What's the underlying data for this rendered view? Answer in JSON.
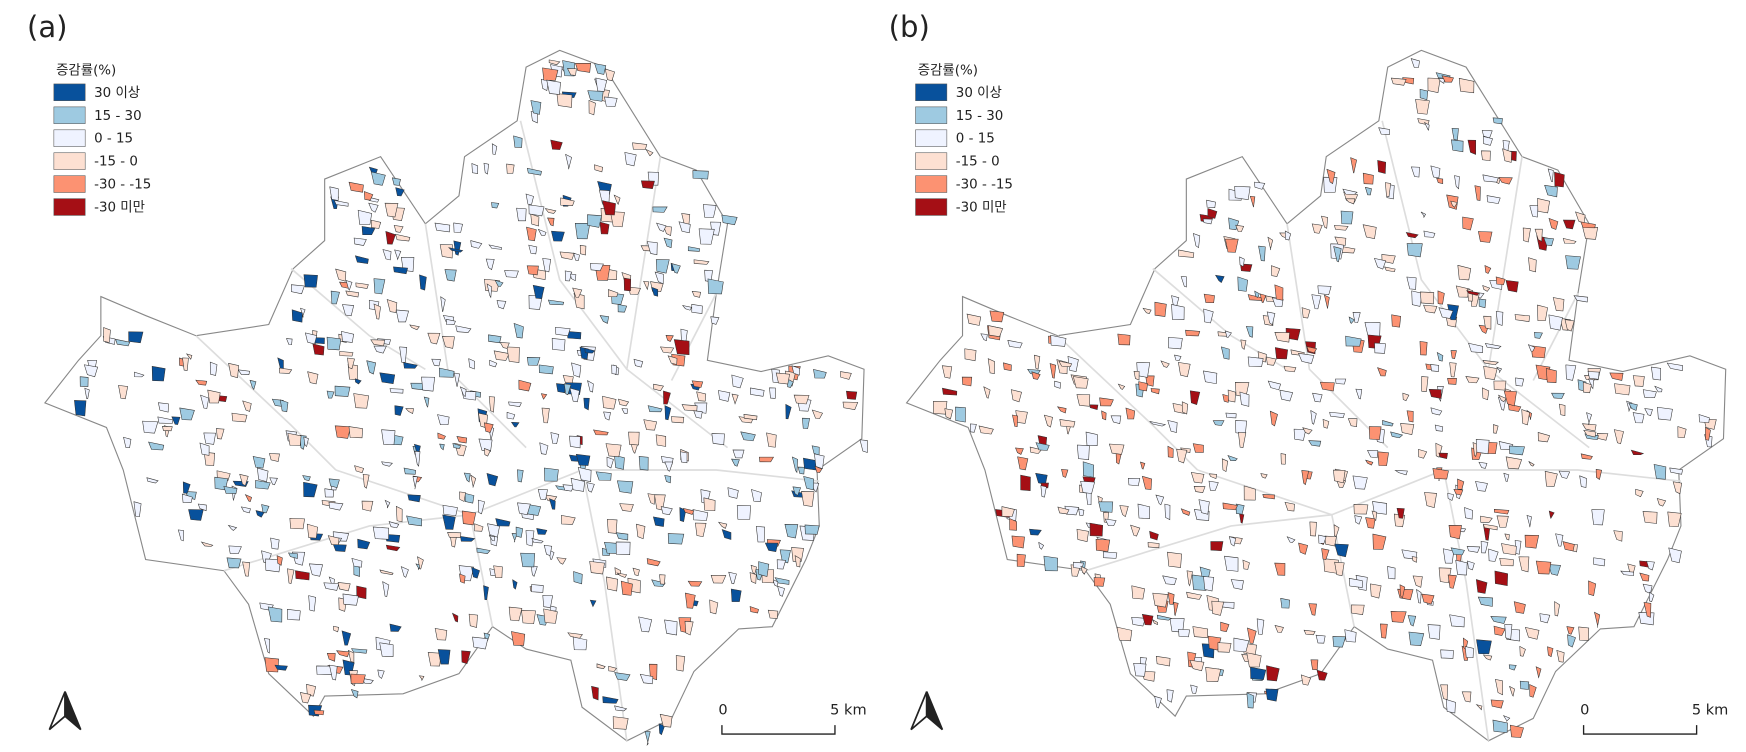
{
  "panels": [
    {
      "label": "(a)",
      "legend": {
        "title": "증감률(%)",
        "items": [
          {
            "label": "30 이상",
            "color": "#08519c"
          },
          {
            "label": "15 - 30",
            "color": "#9ecae1"
          },
          {
            "label": "0 - 15",
            "color": "#eff3ff"
          },
          {
            "label": "-15 - 0",
            "color": "#fde0d2"
          },
          {
            "label": "-30 - -15",
            "color": "#fc9272"
          },
          {
            "label": "-30 미만",
            "color": "#a50f15"
          }
        ]
      },
      "scale": {
        "start": "0",
        "end": "5 km"
      }
    },
    {
      "label": "(b)",
      "legend": {
        "title": "증감률(%)",
        "items": [
          {
            "label": "30 이상",
            "color": "#08519c"
          },
          {
            "label": "15 - 30",
            "color": "#9ecae1"
          },
          {
            "label": "0 - 15",
            "color": "#eff3ff"
          },
          {
            "label": "-15 - 0",
            "color": "#fde0d2"
          },
          {
            "label": "-30 - -15",
            "color": "#fc9272"
          },
          {
            "label": "-30 미만",
            "color": "#a50f15"
          }
        ]
      },
      "scale": {
        "start": "0",
        "end": "5 km"
      }
    }
  ]
}
